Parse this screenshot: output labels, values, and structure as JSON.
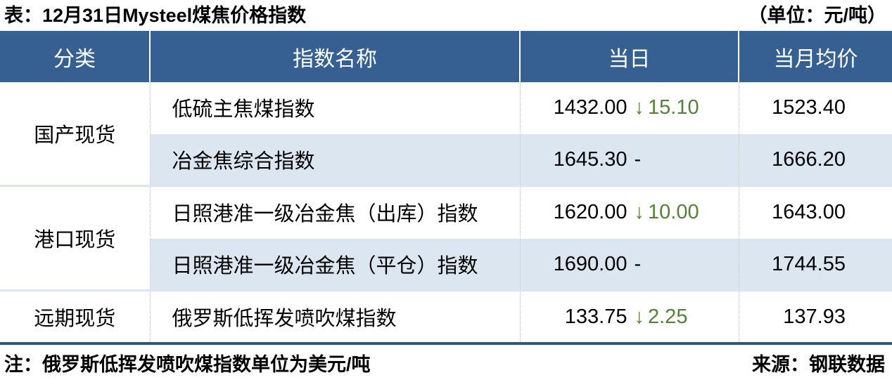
{
  "title": {
    "left": "表：12月31日Mysteel煤焦价格指数",
    "right": "（单位：元/吨）"
  },
  "table": {
    "headers": [
      "分类",
      "指数名称",
      "当日",
      "当月均价"
    ],
    "groups": [
      {
        "category": "国产现货",
        "rows": [
          {
            "name": "低硫主焦煤指数",
            "today": "1432.00",
            "direction": "down",
            "change": "15.10",
            "month_avg": "1523.40"
          },
          {
            "name": "冶金焦综合指数",
            "today": "1645.30",
            "direction": "flat",
            "change": "-",
            "month_avg": "1666.20"
          }
        ]
      },
      {
        "category": "港口现货",
        "rows": [
          {
            "name": "日照港准一级冶金焦（出库）指数",
            "today": "1620.00",
            "direction": "down",
            "change": "10.00",
            "month_avg": "1643.00"
          },
          {
            "name": "日照港准一级冶金焦（平仓）指数",
            "today": "1690.00",
            "direction": "flat",
            "change": "-",
            "month_avg": "1744.55"
          }
        ]
      },
      {
        "category": "远期现货",
        "rows": [
          {
            "name": "俄罗斯低挥发喷吹煤指数",
            "today": "133.75",
            "direction": "down",
            "change": "2.25",
            "month_avg": "137.93"
          }
        ]
      }
    ]
  },
  "footer": {
    "note": "注：俄罗斯低挥发喷吹煤指数单位为美元/吨",
    "source": "来源：钢联数据"
  },
  "icons": {
    "down_arrow": "↓"
  },
  "colors": {
    "header_bg": "#366092",
    "stripe_bg": "#dce6f1",
    "down_green": "#538135",
    "border_blue": "#2e5984"
  }
}
